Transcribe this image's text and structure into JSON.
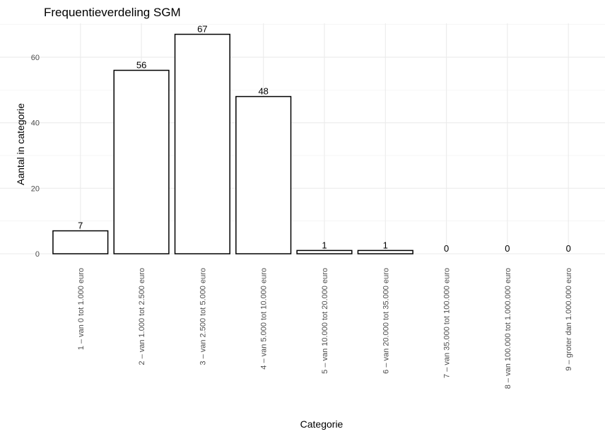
{
  "chart_data": {
    "type": "bar",
    "title": "Frequentieverdeling SGM",
    "xlabel": "Categorie",
    "ylabel": "Aantal in categorie",
    "categories": [
      "1 – van 0 tot 1.000 euro",
      "2 – van 1.000 tot 2.500 euro",
      "3 – van 2.500 tot 5.000 euro",
      "4 – van 5.000 tot 10.000 euro",
      "5 – van 10.000 tot 20.000 euro",
      "6 – van 20.000 tot 35.000 euro",
      "7 – van 35.000 tot 100.000 euro",
      "8 – van 100.000 tot 1.000.000 euro",
      "9 – groter dan 1.000.000 euro"
    ],
    "values": [
      7,
      56,
      67,
      48,
      1,
      1,
      0,
      0,
      0
    ],
    "data_labels": [
      "7",
      "56",
      "67",
      "48",
      "1",
      "1",
      "0",
      "0",
      "0"
    ],
    "yticks": [
      0,
      20,
      40,
      60
    ],
    "ylim": [
      0,
      70.35
    ],
    "grid": true,
    "legend": "none",
    "bar_fill": "#ffffff",
    "bar_stroke": "#000000"
  }
}
